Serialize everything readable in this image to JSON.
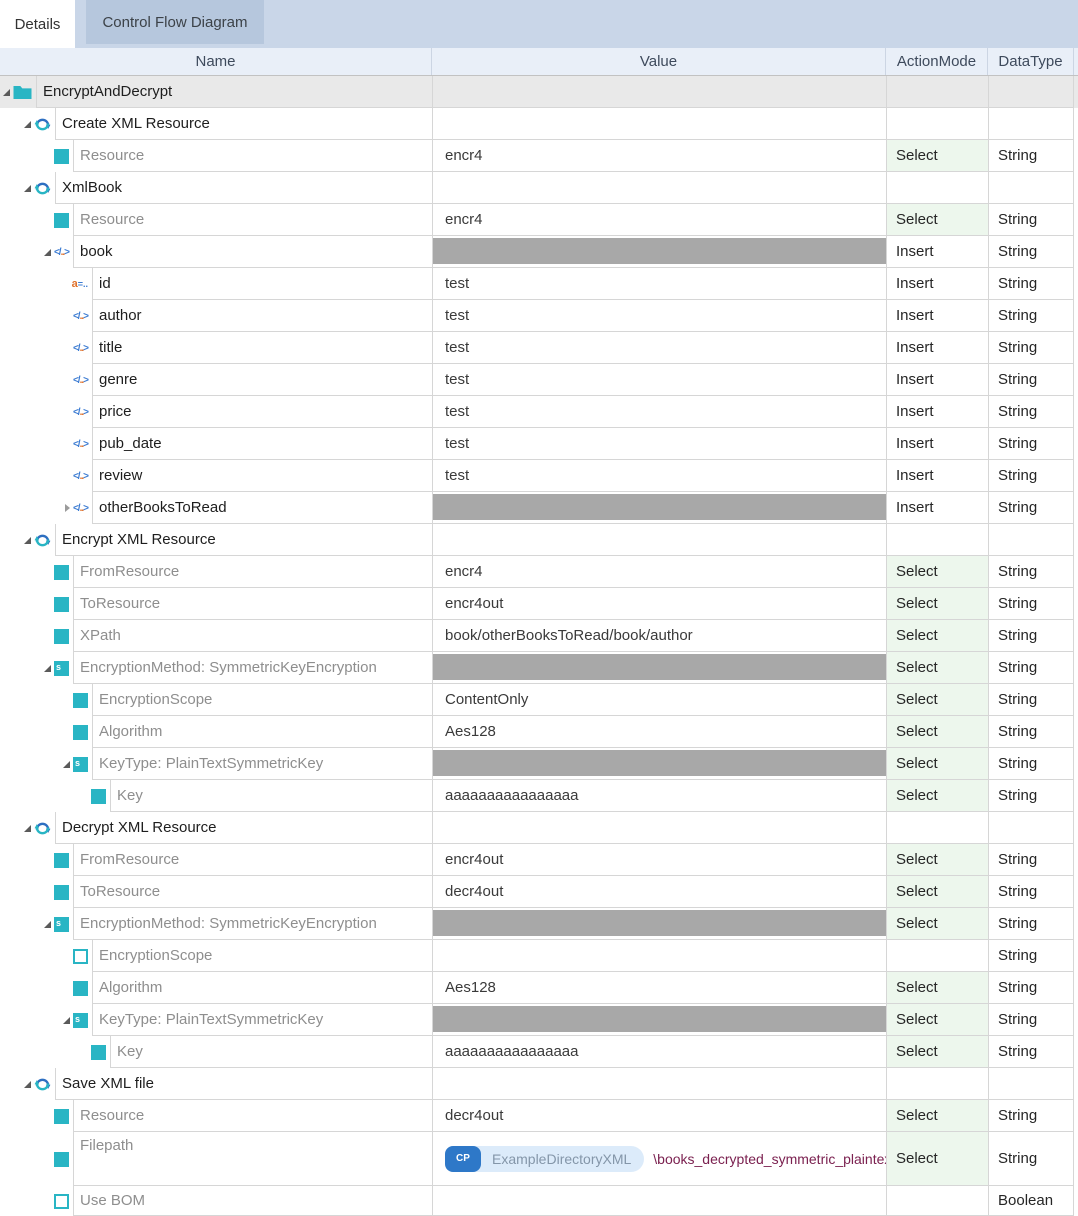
{
  "tabs": [
    {
      "label": "Details",
      "active": true
    },
    {
      "label": "Control Flow Diagram",
      "active": false
    }
  ],
  "colors": {
    "accent_teal": "#29b5c4",
    "icon_blue": "#2e6fc1",
    "icon_orange": "#e0722c",
    "select_green_bg": "#edf7ed",
    "grid_line": "#d6d6d6",
    "value_disabled_bar": "#a8a8a8",
    "tab_strip": "#c9d6e8",
    "tab_inactive": "#b6c7dd",
    "header_bg": "#e9eff8",
    "root_row_bg": "#e9e9e9",
    "chip_badge_blue": "#2e78c8",
    "chip_bg": "#dcebfa",
    "path_text": "#7b2150"
  },
  "icons_used": [
    "folder-icon",
    "refresh-icon",
    "checkbox-checked-icon",
    "checkbox-unchecked-icon",
    "xml-element-icon",
    "xml-attribute-icon",
    "complex-type-icon",
    "collapse-toggle-icon",
    "expand-toggle-icon",
    "cp-badge"
  ],
  "table": {
    "columns": [
      "Name",
      "Value",
      "ActionMode",
      "DataType"
    ],
    "rows": [
      {
        "name": "EncryptAndDecrypt",
        "level": 0,
        "icon": "folder",
        "expander": "open",
        "muted": false,
        "value": "",
        "bar": false,
        "action": "",
        "dtype": "",
        "root": true
      },
      {
        "name": "Create XML Resource",
        "level": 1,
        "icon": "refresh",
        "expander": "open",
        "muted": false,
        "value": "",
        "bar": false,
        "action": "",
        "dtype": ""
      },
      {
        "name": "Resource",
        "level": 2,
        "icon": "checkbox-checked",
        "expander": null,
        "muted": true,
        "value": "encr4",
        "bar": false,
        "action": "Select",
        "dtype": "String"
      },
      {
        "name": "XmlBook",
        "level": 1,
        "icon": "refresh",
        "expander": "open",
        "muted": false,
        "value": "",
        "bar": false,
        "action": "",
        "dtype": ""
      },
      {
        "name": "Resource",
        "level": 2,
        "icon": "checkbox-checked",
        "expander": null,
        "muted": true,
        "value": "encr4",
        "bar": false,
        "action": "Select",
        "dtype": "String"
      },
      {
        "name": "book",
        "level": 2,
        "icon": "xml-element",
        "expander": "open",
        "muted": false,
        "value": "",
        "bar": true,
        "action": "Insert",
        "dtype": "String"
      },
      {
        "name": "id",
        "level": 3,
        "icon": "xml-attribute",
        "expander": null,
        "muted": false,
        "value": "test",
        "bar": false,
        "action": "Insert",
        "dtype": "String"
      },
      {
        "name": "author",
        "level": 3,
        "icon": "xml-element",
        "expander": null,
        "muted": false,
        "value": "test",
        "bar": false,
        "action": "Insert",
        "dtype": "String"
      },
      {
        "name": "title",
        "level": 3,
        "icon": "xml-element",
        "expander": null,
        "muted": false,
        "value": "test",
        "bar": false,
        "action": "Insert",
        "dtype": "String"
      },
      {
        "name": "genre",
        "level": 3,
        "icon": "xml-element",
        "expander": null,
        "muted": false,
        "value": "test",
        "bar": false,
        "action": "Insert",
        "dtype": "String"
      },
      {
        "name": "price",
        "level": 3,
        "icon": "xml-element",
        "expander": null,
        "muted": false,
        "value": "test",
        "bar": false,
        "action": "Insert",
        "dtype": "String"
      },
      {
        "name": "pub_date",
        "level": 3,
        "icon": "xml-element",
        "expander": null,
        "muted": false,
        "value": "test",
        "bar": false,
        "action": "Insert",
        "dtype": "String"
      },
      {
        "name": "review",
        "level": 3,
        "icon": "xml-element",
        "expander": null,
        "muted": false,
        "value": "test",
        "bar": false,
        "action": "Insert",
        "dtype": "String"
      },
      {
        "name": "otherBooksToRead",
        "level": 3,
        "icon": "xml-element",
        "expander": "closed",
        "muted": false,
        "value": "",
        "bar": true,
        "action": "Insert",
        "dtype": "String"
      },
      {
        "name": "Encrypt XML Resource",
        "level": 1,
        "icon": "refresh",
        "expander": "open",
        "muted": false,
        "value": "",
        "bar": false,
        "action": "",
        "dtype": ""
      },
      {
        "name": "FromResource",
        "level": 2,
        "icon": "checkbox-checked",
        "expander": null,
        "muted": true,
        "value": "encr4",
        "bar": false,
        "action": "Select",
        "dtype": "String"
      },
      {
        "name": "ToResource",
        "level": 2,
        "icon": "checkbox-checked",
        "expander": null,
        "muted": true,
        "value": "encr4out",
        "bar": false,
        "action": "Select",
        "dtype": "String"
      },
      {
        "name": "XPath",
        "level": 2,
        "icon": "checkbox-checked",
        "expander": null,
        "muted": true,
        "value": "book/otherBooksToRead/book/author",
        "bar": false,
        "action": "Select",
        "dtype": "String"
      },
      {
        "name": "EncryptionMethod: SymmetricKeyEncryption",
        "level": 2,
        "icon": "complex-type",
        "expander": "open",
        "muted": true,
        "value": "",
        "bar": true,
        "action": "Select",
        "dtype": "String"
      },
      {
        "name": "EncryptionScope",
        "level": 3,
        "icon": "checkbox-checked",
        "expander": null,
        "muted": true,
        "value": "ContentOnly",
        "bar": false,
        "action": "Select",
        "dtype": "String"
      },
      {
        "name": "Algorithm",
        "level": 3,
        "icon": "checkbox-checked",
        "expander": null,
        "muted": true,
        "value": "Aes128",
        "bar": false,
        "action": "Select",
        "dtype": "String"
      },
      {
        "name": "KeyType: PlainTextSymmetricKey",
        "level": 3,
        "icon": "complex-type",
        "expander": "open",
        "muted": true,
        "value": "",
        "bar": true,
        "action": "Select",
        "dtype": "String"
      },
      {
        "name": "Key",
        "level": 4,
        "icon": "checkbox-checked",
        "expander": null,
        "muted": true,
        "value": "aaaaaaaaaaaaaaaa",
        "bar": false,
        "action": "Select",
        "dtype": "String"
      },
      {
        "name": "Decrypt XML Resource",
        "level": 1,
        "icon": "refresh",
        "expander": "open",
        "muted": false,
        "value": "",
        "bar": false,
        "action": "",
        "dtype": ""
      },
      {
        "name": "FromResource",
        "level": 2,
        "icon": "checkbox-checked",
        "expander": null,
        "muted": true,
        "value": "encr4out",
        "bar": false,
        "action": "Select",
        "dtype": "String"
      },
      {
        "name": "ToResource",
        "level": 2,
        "icon": "checkbox-checked",
        "expander": null,
        "muted": true,
        "value": "decr4out",
        "bar": false,
        "action": "Select",
        "dtype": "String"
      },
      {
        "name": "EncryptionMethod: SymmetricKeyEncryption",
        "level": 2,
        "icon": "complex-type",
        "expander": "open",
        "muted": true,
        "value": "",
        "bar": true,
        "action": "Select",
        "dtype": "String"
      },
      {
        "name": "EncryptionScope",
        "level": 3,
        "icon": "checkbox-unchecked",
        "expander": null,
        "muted": true,
        "value": "",
        "bar": false,
        "action": "",
        "dtype": "String"
      },
      {
        "name": "Algorithm",
        "level": 3,
        "icon": "checkbox-checked",
        "expander": null,
        "muted": true,
        "value": "Aes128",
        "bar": false,
        "action": "Select",
        "dtype": "String"
      },
      {
        "name": "KeyType: PlainTextSymmetricKey",
        "level": 3,
        "icon": "complex-type",
        "expander": "open",
        "muted": true,
        "value": "",
        "bar": true,
        "action": "Select",
        "dtype": "String"
      },
      {
        "name": "Key",
        "level": 4,
        "icon": "checkbox-checked",
        "expander": null,
        "muted": true,
        "value": "aaaaaaaaaaaaaaaa",
        "bar": false,
        "action": "Select",
        "dtype": "String"
      },
      {
        "name": "Save XML file",
        "level": 1,
        "icon": "refresh",
        "expander": "open",
        "muted": false,
        "value": "",
        "bar": false,
        "action": "",
        "dtype": ""
      },
      {
        "name": "Resource",
        "level": 2,
        "icon": "checkbox-checked",
        "expander": null,
        "muted": true,
        "value": "decr4out",
        "bar": false,
        "action": "Select",
        "dtype": "String"
      },
      {
        "name": "Filepath",
        "level": 2,
        "icon": "checkbox-checked",
        "expander": null,
        "muted": true,
        "value": "",
        "bar": false,
        "action": "Select",
        "dtype": "String",
        "tall": true,
        "chip": {
          "badge": "CP",
          "label": "ExampleDirectoryXML",
          "path": "\\books_decrypted_symmetric_plaintext.xml"
        }
      },
      {
        "name": "Use BOM",
        "level": 2,
        "icon": "checkbox-unchecked",
        "expander": null,
        "muted": true,
        "value": "",
        "bar": false,
        "action": "",
        "dtype": "Boolean",
        "last": true
      }
    ]
  }
}
